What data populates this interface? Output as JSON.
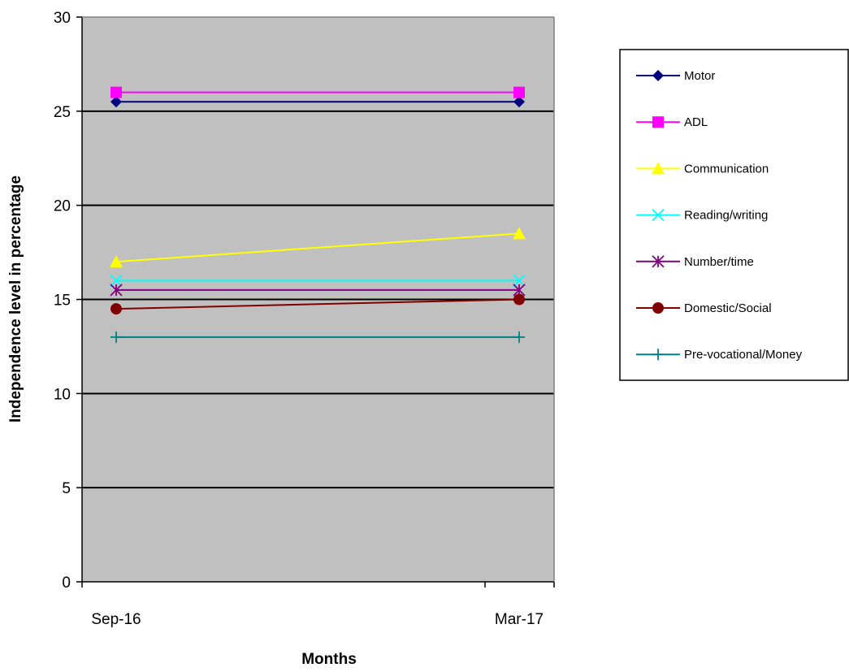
{
  "chart_data": {
    "type": "line",
    "title": "",
    "xlabel": "Months",
    "ylabel": "Independence level in percentage",
    "categories": [
      "Sep-16",
      "Mar-17"
    ],
    "ylim": [
      0,
      30
    ],
    "yticks": [
      0,
      5,
      10,
      15,
      20,
      25,
      30
    ],
    "grid": "horizontal",
    "legend_position": "right",
    "plot_background": "#C0C0C0",
    "series": [
      {
        "name": "Motor",
        "values": [
          25.5,
          25.5
        ],
        "color": "#000080",
        "marker": "diamond"
      },
      {
        "name": "ADL",
        "values": [
          26,
          26
        ],
        "color": "#FF00FF",
        "marker": "square"
      },
      {
        "name": "Communication",
        "values": [
          17,
          18.5
        ],
        "color": "#FFFF00",
        "marker": "triangle"
      },
      {
        "name": "Reading/writing",
        "values": [
          16,
          16
        ],
        "color": "#00FFFF",
        "marker": "x"
      },
      {
        "name": "Number/time",
        "values": [
          15.5,
          15.5
        ],
        "color": "#800080",
        "marker": "star"
      },
      {
        "name": "Domestic/Social",
        "values": [
          14.5,
          15
        ],
        "color": "#800000",
        "marker": "circle"
      },
      {
        "name": "Pre-vocational/Money",
        "values": [
          13,
          13
        ],
        "color": "#008080",
        "marker": "plus"
      }
    ]
  }
}
